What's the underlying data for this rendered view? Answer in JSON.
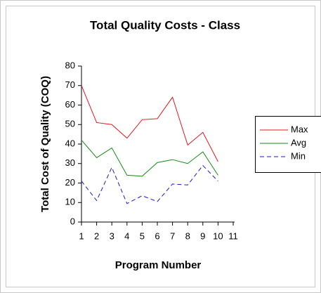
{
  "chart_data": {
    "type": "line",
    "title": "Total Quality Costs - Class",
    "x_label": "Program Number",
    "y_label": "Total Cost of Quality (COQ)",
    "x": [
      1,
      2,
      3,
      4,
      5,
      6,
      7,
      8,
      9,
      10
    ],
    "series": [
      {
        "name": "Max",
        "color": "#e8141e",
        "dashed": false,
        "values": [
          70,
          51,
          50,
          43,
          52.5,
          53,
          64,
          39.5,
          46,
          31
        ]
      },
      {
        "name": "Avg",
        "color": "#138a13",
        "dashed": false,
        "values": [
          42,
          33,
          38,
          24,
          23.5,
          30.5,
          32,
          30,
          36,
          24
        ]
      },
      {
        "name": "Min",
        "color": "#1a1ad0",
        "dashed": true,
        "values": [
          21,
          11,
          28,
          9.5,
          13.5,
          10.5,
          19.5,
          19,
          29,
          21
        ]
      }
    ],
    "xlim": [
      1,
      11
    ],
    "xticks": [
      1,
      2,
      3,
      4,
      5,
      6,
      7,
      8,
      9,
      10,
      11
    ],
    "ylim": [
      0,
      80
    ],
    "yticks": [
      0,
      10,
      20,
      30,
      40,
      50,
      60,
      70,
      80
    ],
    "legend": "right",
    "grid": false
  }
}
